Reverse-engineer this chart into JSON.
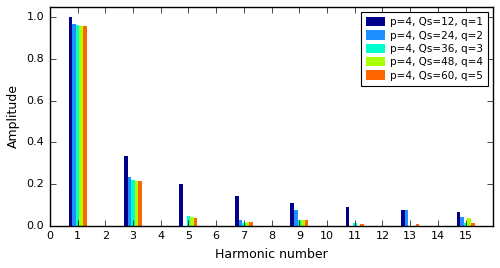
{
  "xlabel": "Harmonic number",
  "ylabel": "Amplitude",
  "xlim": [
    0,
    16
  ],
  "ylim": [
    0,
    1.05
  ],
  "series": [
    {
      "label": "p=4, Qs=12, q=1",
      "color": "#00008B",
      "harmonics": [
        1,
        3,
        5,
        7,
        9,
        11,
        13,
        15
      ],
      "amplitudes": [
        1.0,
        0.333,
        0.2,
        0.143,
        0.111,
        0.091,
        0.077,
        0.067
      ]
    },
    {
      "label": "p=4, Qs=24, q=2",
      "color": "#1E90FF",
      "harmonics": [
        1,
        3,
        7,
        9,
        13,
        15
      ],
      "amplitudes": [
        0.966,
        0.232,
        0.03,
        0.077,
        0.074,
        0.04
      ]
    },
    {
      "label": "p=4, Qs=36, q=3",
      "color": "#00FFCC",
      "harmonics": [
        1,
        3,
        5,
        7,
        9,
        11,
        15
      ],
      "amplitudes": [
        0.96,
        0.218,
        0.049,
        0.015,
        0.028,
        0.013,
        0.015
      ]
    },
    {
      "label": "p=4, Qs=48, q=4",
      "color": "#AAFF00",
      "harmonics": [
        1,
        3,
        5,
        7,
        9,
        15
      ],
      "amplitudes": [
        0.958,
        0.215,
        0.04,
        0.018,
        0.027,
        0.038
      ]
    },
    {
      "label": "p=4, Qs=60, q=5",
      "color": "#FF6600",
      "harmonics": [
        1,
        3,
        5,
        7,
        9,
        11,
        13,
        15
      ],
      "amplitudes": [
        0.958,
        0.215,
        0.038,
        0.019,
        0.026,
        0.01,
        0.01,
        0.013
      ]
    }
  ],
  "bar_width": 0.13,
  "xticks": [
    0,
    1,
    2,
    3,
    4,
    5,
    6,
    7,
    8,
    9,
    10,
    11,
    12,
    13,
    14,
    15
  ],
  "legend_loc": "upper right",
  "background_color": "#ffffff"
}
